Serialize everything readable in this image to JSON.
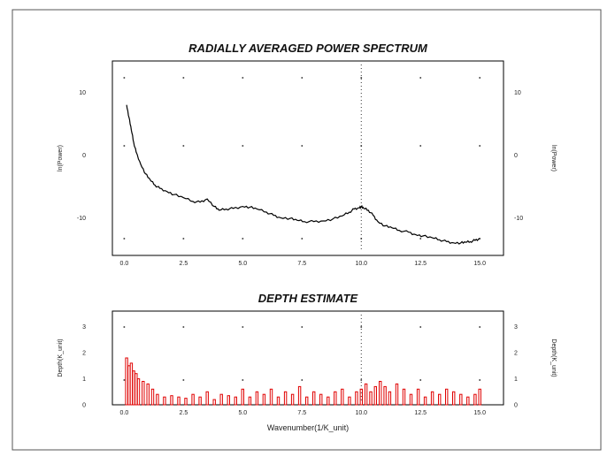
{
  "chart_data": [
    {
      "type": "line",
      "title": "RADIALLY AVERAGED POWER SPECTRUM",
      "ylabel_left": "ln(Power)",
      "ylabel_right": "ln(Power)",
      "xlim": [
        -0.5,
        16.0
      ],
      "ylim": [
        -16.0,
        15.0
      ],
      "xticks": [
        0,
        2.5,
        5,
        7.5,
        10,
        12.5,
        15
      ],
      "xtick_labels": [
        "0.0",
        "2.5",
        "5.0",
        "7.5",
        "10.0",
        "12.5",
        "15.0"
      ],
      "yticks": [
        10,
        0,
        -10
      ],
      "ytick_labels": [
        "10",
        "0",
        "-10"
      ],
      "grid": "dotted points",
      "color": "#000000",
      "series": [
        {
          "x": [
            0.1,
            0.2,
            0.3,
            0.4,
            0.5,
            0.7,
            0.9,
            1.1,
            1.3,
            1.5,
            1.8,
            2.1,
            2.5,
            2.9,
            3.2,
            3.5,
            3.8,
            4.0,
            4.3,
            4.6,
            5.0,
            5.3,
            5.6,
            6.0,
            6.3,
            6.6,
            7.0,
            7.3,
            7.6,
            8.0,
            8.4,
            8.8,
            9.2,
            9.5,
            9.7,
            9.9,
            10.0,
            10.1,
            10.3,
            10.5,
            10.7,
            11.0,
            11.3,
            11.6,
            12.0,
            12.3,
            12.6,
            13.0,
            13.3,
            13.6,
            13.9,
            14.2,
            14.4,
            14.6,
            14.8,
            15.0
          ],
          "y": [
            8.0,
            6.0,
            4.0,
            2.0,
            0.5,
            -1.5,
            -3.0,
            -4.0,
            -4.8,
            -5.3,
            -5.8,
            -6.3,
            -6.8,
            -7.4,
            -7.5,
            -7.0,
            -8.2,
            -8.8,
            -8.6,
            -8.5,
            -8.2,
            -8.3,
            -8.6,
            -9.1,
            -9.6,
            -10.0,
            -10.1,
            -10.4,
            -10.6,
            -10.6,
            -10.5,
            -10.2,
            -9.7,
            -9.1,
            -8.6,
            -8.4,
            -8.2,
            -8.5,
            -8.8,
            -9.6,
            -10.6,
            -11.3,
            -11.6,
            -12.0,
            -12.3,
            -12.7,
            -12.9,
            -13.2,
            -13.5,
            -13.8,
            -14.0,
            -14.0,
            -13.9,
            -13.8,
            -13.6,
            -13.3
          ]
        }
      ]
    },
    {
      "type": "bar",
      "title": "DEPTH ESTIMATE",
      "ylabel_left": "Depth(K_unit)",
      "ylabel_right": "Depth(K_unit)",
      "xlabel": "Wavenumber(1/K_unit)",
      "xlim": [
        -0.5,
        16.0
      ],
      "ylim": [
        0,
        3.6
      ],
      "xticks": [
        0,
        2.5,
        5,
        7.5,
        10,
        12.5,
        15
      ],
      "xtick_labels": [
        "0.0",
        "2.5",
        "5.0",
        "7.5",
        "10.0",
        "12.5",
        "15.0"
      ],
      "yticks": [
        0,
        1,
        2,
        3
      ],
      "ytick_labels": [
        "0",
        "1",
        "2",
        "3"
      ],
      "color": "#e00000",
      "series": [
        {
          "x": [
            0.1,
            0.2,
            0.3,
            0.4,
            0.5,
            0.6,
            0.8,
            1.0,
            1.2,
            1.4,
            1.7,
            2.0,
            2.3,
            2.6,
            2.9,
            3.2,
            3.5,
            3.8,
            4.1,
            4.4,
            4.7,
            5.0,
            5.3,
            5.6,
            5.9,
            6.2,
            6.5,
            6.8,
            7.1,
            7.4,
            7.7,
            8.0,
            8.3,
            8.6,
            8.9,
            9.2,
            9.5,
            9.8,
            10.0,
            10.2,
            10.4,
            10.6,
            10.8,
            11.0,
            11.2,
            11.5,
            11.8,
            12.1,
            12.4,
            12.7,
            13.0,
            13.3,
            13.6,
            13.9,
            14.2,
            14.5,
            14.8,
            15.0
          ],
          "values": [
            1.8,
            1.5,
            1.6,
            1.3,
            1.2,
            1.0,
            0.9,
            0.8,
            0.6,
            0.4,
            0.3,
            0.35,
            0.3,
            0.25,
            0.4,
            0.3,
            0.5,
            0.2,
            0.4,
            0.35,
            0.3,
            0.6,
            0.3,
            0.5,
            0.4,
            0.6,
            0.3,
            0.5,
            0.4,
            0.7,
            0.3,
            0.5,
            0.4,
            0.3,
            0.5,
            0.6,
            0.3,
            0.5,
            0.6,
            0.8,
            0.5,
            0.7,
            0.9,
            0.7,
            0.5,
            0.8,
            0.6,
            0.4,
            0.6,
            0.3,
            0.5,
            0.4,
            0.6,
            0.5,
            0.4,
            0.3,
            0.4,
            0.6
          ]
        }
      ]
    }
  ]
}
